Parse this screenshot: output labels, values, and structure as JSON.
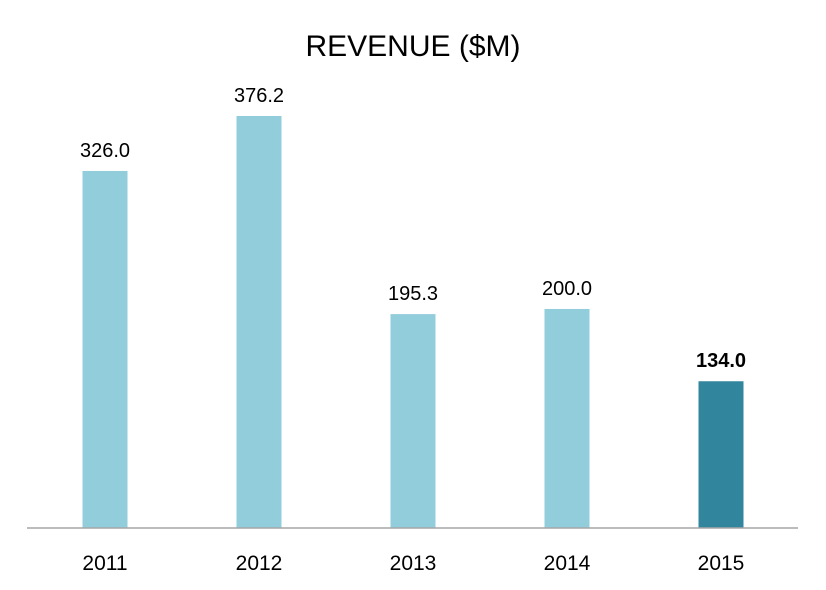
{
  "chart_data": {
    "type": "bar",
    "title": "REVENUE ($M)",
    "xlabel": "",
    "ylabel": "",
    "categories": [
      "2011",
      "2012",
      "2013",
      "2014",
      "2015"
    ],
    "values": [
      326.0,
      376.2,
      195.3,
      200.0,
      134.0
    ],
    "value_labels": [
      "326.0",
      "376.2",
      "195.3",
      "200.0",
      "134.0"
    ],
    "ylim": [
      0,
      376.2
    ],
    "grid": false,
    "legend": "none",
    "highlight_index": 4,
    "colors": {
      "bar": "#92CDDC",
      "highlight": "#31859C",
      "axis": "#A6A6A6"
    }
  }
}
